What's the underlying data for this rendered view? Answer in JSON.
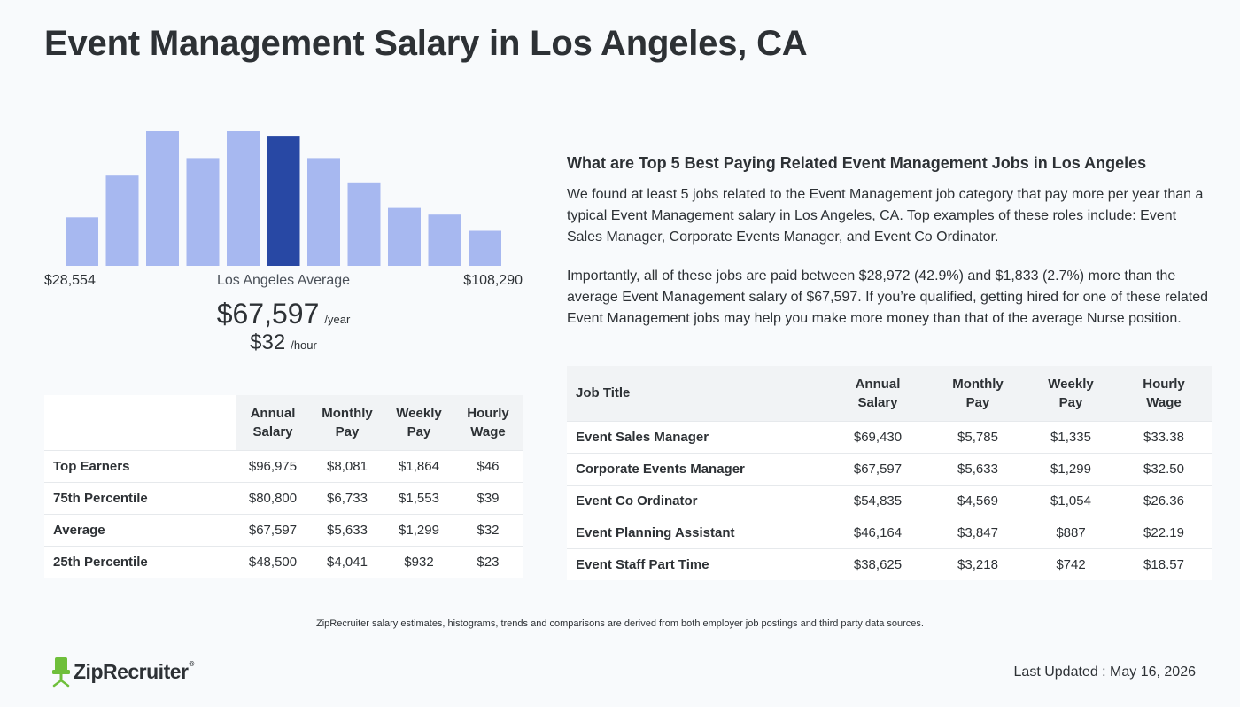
{
  "title": "Event Management Salary in Los Angeles, CA",
  "chart_data": {
    "type": "bar",
    "values": [
      36,
      67,
      100,
      80,
      100,
      96,
      80,
      62,
      43,
      38,
      26
    ],
    "highlight_index": 5,
    "colors": {
      "bar": "#a7b8f0",
      "highlight": "#2848a4"
    },
    "min_label": "$28,554",
    "max_label": "$108,290",
    "center_label": "Los Angeles Average"
  },
  "average": {
    "yearly": "$67,597",
    "yearly_unit": "/year",
    "hourly": "$32",
    "hourly_unit": "/hour"
  },
  "percentile_table": {
    "headers": [
      [
        "Annual",
        "Salary"
      ],
      [
        "Monthly",
        "Pay"
      ],
      [
        "Weekly",
        "Pay"
      ],
      [
        "Hourly",
        "Wage"
      ]
    ],
    "rows": [
      {
        "label": "Top Earners",
        "annual": "$96,975",
        "monthly": "$8,081",
        "weekly": "$1,864",
        "hourly": "$46"
      },
      {
        "label": "75th Percentile",
        "annual": "$80,800",
        "monthly": "$6,733",
        "weekly": "$1,553",
        "hourly": "$39"
      },
      {
        "label": "Average",
        "annual": "$67,597",
        "monthly": "$5,633",
        "weekly": "$1,299",
        "hourly": "$32"
      },
      {
        "label": "25th Percentile",
        "annual": "$48,500",
        "monthly": "$4,041",
        "weekly": "$932",
        "hourly": "$23"
      }
    ]
  },
  "related": {
    "heading": "What are Top 5 Best Paying Related Event Management Jobs in Los Angeles",
    "paragraph1": "We found at least 5 jobs related to the Event Management job category that pay more per year than a typical Event Management salary in Los Angeles, CA. Top examples of these roles include: Event Sales Manager, Corporate Events Manager, and Event Co Ordinator.",
    "paragraph2": "Importantly, all of these jobs are paid between $28,972 (42.9%) and $1,833 (2.7%) more than the average Event Management salary of $67,597. If you’re qualified, getting hired for one of these related Event Management jobs may help you make more money than that of the average Nurse position."
  },
  "jobs_table": {
    "job_title_header": "Job Title",
    "headers": [
      [
        "Annual",
        "Salary"
      ],
      [
        "Monthly",
        "Pay"
      ],
      [
        "Weekly",
        "Pay"
      ],
      [
        "Hourly",
        "Wage"
      ]
    ],
    "rows": [
      {
        "title": "Event Sales Manager",
        "annual": "$69,430",
        "monthly": "$5,785",
        "weekly": "$1,335",
        "hourly": "$33.38"
      },
      {
        "title": "Corporate Events Manager",
        "annual": "$67,597",
        "monthly": "$5,633",
        "weekly": "$1,299",
        "hourly": "$32.50"
      },
      {
        "title": "Event Co Ordinator",
        "annual": "$54,835",
        "monthly": "$4,569",
        "weekly": "$1,054",
        "hourly": "$26.36"
      },
      {
        "title": "Event Planning Assistant",
        "annual": "$46,164",
        "monthly": "$3,847",
        "weekly": "$887",
        "hourly": "$22.19"
      },
      {
        "title": "Event Staff Part Time",
        "annual": "$38,625",
        "monthly": "$3,218",
        "weekly": "$742",
        "hourly": "$18.57"
      }
    ]
  },
  "footer": {
    "disclaimer": "ZipRecruiter salary estimates, histograms, trends and comparisons are derived from both employer job postings and third party data sources.",
    "logo_text": "ZipRecruiter",
    "logo_tm": "®",
    "logo_color": "#6fbf3b",
    "last_updated": "Last Updated : May 16, 2026"
  }
}
